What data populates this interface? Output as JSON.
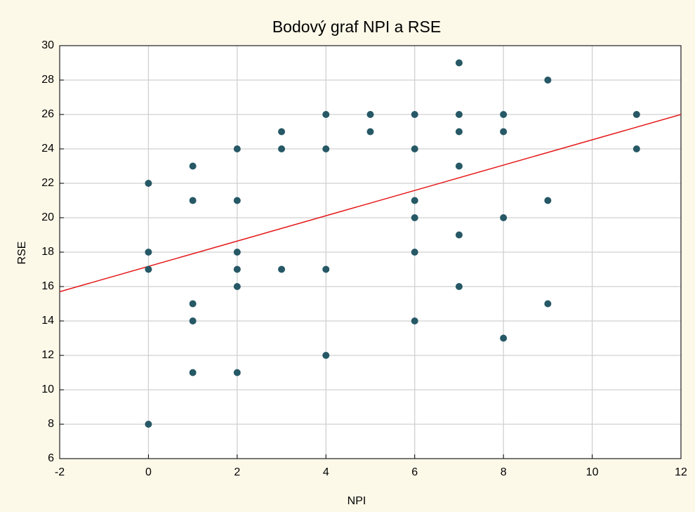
{
  "chart_data": {
    "type": "scatter",
    "title": "Bodový graf NPI a RSE",
    "x_label": "NPI",
    "y_label": "RSE",
    "x": [
      0,
      0,
      0,
      0,
      1,
      1,
      1,
      1,
      1,
      2,
      2,
      2,
      2,
      2,
      2,
      3,
      3,
      3,
      4,
      4,
      4,
      4,
      5,
      5,
      6,
      6,
      6,
      6,
      6,
      6,
      7,
      7,
      7,
      7,
      7,
      7,
      8,
      8,
      8,
      8,
      9,
      9,
      9,
      11,
      11
    ],
    "series": [
      {
        "color": "#265866",
        "values": [
          22,
          18,
          17,
          8,
          23,
          21,
          15,
          14,
          11,
          24,
          21,
          18,
          17,
          16,
          11,
          25,
          24,
          17,
          26,
          24,
          17,
          12,
          26,
          25,
          26,
          24,
          21,
          20,
          18,
          14,
          29,
          26,
          25,
          23,
          19,
          16,
          26,
          25,
          20,
          13,
          28,
          21,
          15,
          26,
          24
        ]
      }
    ],
    "regression_line": {
      "color": "#e41a1a",
      "x": [
        -2,
        12
      ],
      "y": [
        15.7,
        26.0
      ]
    },
    "xlim": [
      -2,
      12
    ],
    "xticks": [
      -2,
      0,
      2,
      4,
      6,
      8,
      10,
      12
    ],
    "ylim": [
      6,
      30
    ],
    "yticks": [
      6,
      8,
      10,
      12,
      14,
      16,
      18,
      20,
      22,
      24,
      26,
      28,
      30
    ],
    "grid": true
  }
}
